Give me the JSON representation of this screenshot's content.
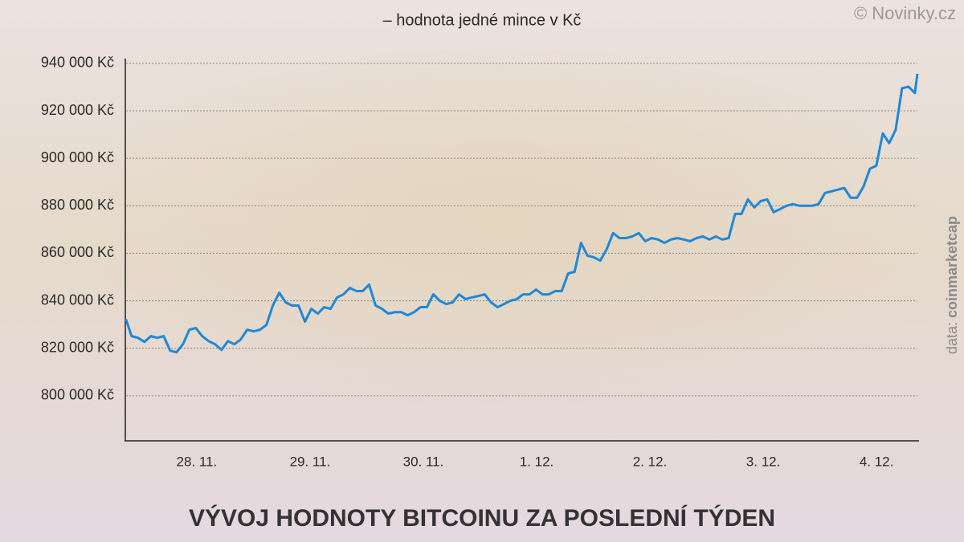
{
  "chart_data": {
    "type": "line",
    "title": "VÝVOJ HODNOTY BITCOINU ZA POSLEDNÍ TÝDEN",
    "subtitle": "– hodnota jedné mince v Kč",
    "logo": "© Novinky.cz",
    "source": {
      "prefix": "data:",
      "name": "coinmarketcap"
    },
    "x": [
      0,
      1.2,
      2.56,
      3.92,
      5.28,
      6.64,
      8,
      9.36,
      10.72,
      12.08,
      13.44,
      14.8,
      16.16,
      17.52,
      18.88,
      20.24,
      21.6,
      22.96,
      24.32,
      25.68,
      27.04,
      28.4,
      29.76,
      31.12,
      32.48,
      33.84,
      35.2,
      36.56,
      37.92,
      39.28,
      40.64,
      42,
      43.36,
      44.72,
      46.08,
      47.44,
      48.8,
      50.16,
      51.52,
      52.88,
      54.24,
      55.6,
      56.96,
      58.32,
      59.68,
      61.04,
      62.4,
      63.76,
      65.12,
      66.48,
      67.84,
      69.2,
      70.56,
      71.92,
      73.28,
      74.64,
      76,
      77.36,
      78.72,
      80.08,
      81.44,
      82.8,
      84.16,
      85.52,
      86.88,
      88.24,
      89.6,
      90.96,
      92.32,
      93.68,
      95.04,
      96.4,
      97.76,
      99.12,
      100.48,
      101.84,
      103.2,
      104.56,
      105.92,
      107.28,
      108.64,
      110,
      111.36,
      112.72,
      114.08,
      115.44,
      116.8,
      118.16,
      119.52,
      120.88,
      122.24,
      123.6,
      124.96,
      126.32,
      127.68,
      129.04,
      130.4,
      131.76,
      133.12,
      134.48,
      135.84,
      137.2,
      138.56,
      139.92,
      141.28,
      142.64,
      144,
      145.36,
      146.72,
      148.08,
      149.44,
      150.8,
      152.16,
      153.52,
      154.88,
      156.24,
      157.6,
      158.96,
      160.32,
      161.68,
      163.04,
      164.4,
      165.76,
      167.12,
      167.66
    ],
    "series": [
      {
        "name": "Bitcoin",
        "color": "#1e88d8",
        "values": [
          832200,
          825100,
          824400,
          822700,
          825100,
          824400,
          825100,
          819000,
          818300,
          821700,
          827800,
          828500,
          825100,
          823000,
          821700,
          819300,
          823000,
          821700,
          823700,
          827800,
          827100,
          827800,
          829800,
          838000,
          843400,
          839300,
          838000,
          838000,
          831200,
          836600,
          834600,
          837300,
          836600,
          841400,
          842700,
          845400,
          844100,
          844100,
          846800,
          838000,
          836600,
          834600,
          835200,
          835200,
          833900,
          835200,
          837300,
          837300,
          842700,
          840000,
          838600,
          839300,
          842700,
          840700,
          841400,
          842000,
          842700,
          839300,
          837300,
          838600,
          840000,
          840700,
          842700,
          842700,
          844700,
          842700,
          842700,
          844100,
          844100,
          851500,
          852200,
          864400,
          859000,
          858300,
          856900,
          861700,
          868500,
          866400,
          866400,
          867100,
          868500,
          865100,
          866400,
          865800,
          864400,
          865800,
          866400,
          865800,
          865100,
          866400,
          867100,
          865800,
          867100,
          865800,
          866400,
          876600,
          876600,
          882700,
          879300,
          882000,
          882700,
          877300,
          878600,
          880000,
          880700,
          880000,
          880000,
          880000,
          880700,
          885400,
          886100,
          886800,
          887500,
          883400,
          883400,
          888100,
          895600,
          896900,
          910500,
          906400,
          911900,
          929500,
          930200,
          927500,
          935600
        ]
      }
    ],
    "xlim": [
      -0.3,
      168
    ],
    "xticks": [
      {
        "value": 15,
        "label": "28. 11."
      },
      {
        "value": 39,
        "label": "29. 11."
      },
      {
        "value": 63,
        "label": "30. 11."
      },
      {
        "value": 87,
        "label": "1. 12."
      },
      {
        "value": 111,
        "label": "2. 12."
      },
      {
        "value": 135,
        "label": "3. 12."
      },
      {
        "value": 159,
        "label": "4. 12."
      }
    ],
    "ylim": [
      781000,
      942000
    ],
    "yticks": [
      {
        "value": 800000,
        "label": "800 000 Kč"
      },
      {
        "value": 820000,
        "label": "820 000 Kč"
      },
      {
        "value": 840000,
        "label": "840 000 Kč"
      },
      {
        "value": 860000,
        "label": "860 000 Kč"
      },
      {
        "value": 880000,
        "label": "880 000 Kč"
      },
      {
        "value": 900000,
        "label": "900 000 Kč"
      },
      {
        "value": 920000,
        "label": "920 000 Kč"
      },
      {
        "value": 940000,
        "label": "940 000 Kč"
      }
    ],
    "grid": true
  }
}
